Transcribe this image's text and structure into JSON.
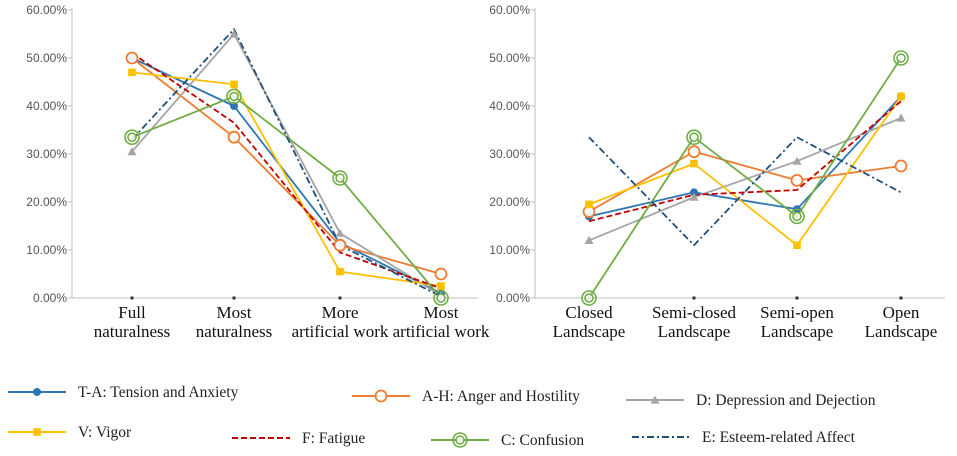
{
  "figure_title": "",
  "chart_data": [
    {
      "type": "line",
      "title": "",
      "xlabel": "",
      "ylabel": "",
      "ylim": [
        0,
        60
      ],
      "yticks": [
        0,
        10,
        20,
        30,
        40,
        50,
        60
      ],
      "ytick_labels": [
        "0.00%",
        "10.00%",
        "20.00%",
        "30.00%",
        "40.00%",
        "50.00%",
        "60.00%"
      ],
      "categories": [
        [
          "Full",
          "naturalness"
        ],
        [
          "Most",
          "naturalness"
        ],
        [
          "More",
          "artificial work"
        ],
        [
          "Most",
          "artificial work"
        ]
      ],
      "series": [
        {
          "key": "TA",
          "values": [
            50,
            40,
            11.5,
            1
          ]
        },
        {
          "key": "AH",
          "values": [
            50,
            33.5,
            11,
            5
          ]
        },
        {
          "key": "D",
          "values": [
            30.5,
            55,
            13.5,
            0.5
          ]
        },
        {
          "key": "V",
          "values": [
            47,
            44.5,
            5.5,
            2.5
          ]
        },
        {
          "key": "F",
          "values": [
            51,
            36.5,
            9.5,
            2
          ]
        },
        {
          "key": "C",
          "values": [
            33.5,
            42,
            25,
            0
          ]
        },
        {
          "key": "E",
          "values": [
            33,
            56,
            11,
            0.3
          ]
        }
      ]
    },
    {
      "type": "line",
      "title": "",
      "xlabel": "",
      "ylabel": "",
      "ylim": [
        0,
        60
      ],
      "yticks": [
        0,
        10,
        20,
        30,
        40,
        50,
        60
      ],
      "ytick_labels": [
        "0.00%",
        "10.00%",
        "20.00%",
        "30.00%",
        "40.00%",
        "50.00%",
        "60.00%"
      ],
      "categories": [
        [
          "Closed",
          "Landscape"
        ],
        [
          "Semi-closed",
          "Landscape"
        ],
        [
          "Semi-open",
          "Landscape"
        ],
        [
          "Open",
          "Landscape"
        ]
      ],
      "series": [
        {
          "key": "TA",
          "values": [
            17,
            22,
            18.5,
            42
          ]
        },
        {
          "key": "AH",
          "values": [
            18,
            30.5,
            24.5,
            27.5
          ]
        },
        {
          "key": "D",
          "values": [
            12,
            21,
            28.5,
            37.5
          ]
        },
        {
          "key": "V",
          "values": [
            19.5,
            28,
            11,
            42
          ]
        },
        {
          "key": "F",
          "values": [
            16,
            21.5,
            22.5,
            41
          ]
        },
        {
          "key": "C",
          "values": [
            0,
            33.5,
            17,
            50
          ]
        },
        {
          "key": "E",
          "values": [
            33.5,
            11,
            33.5,
            22
          ]
        }
      ]
    }
  ],
  "legend": [
    {
      "key": "TA",
      "label": "T-A: Tension and Anxiety",
      "color": "#2e75b6",
      "marker": "circle",
      "dash": "solid"
    },
    {
      "key": "AH",
      "label": "A-H: Anger and Hostility",
      "color": "#ed7d31",
      "marker": "ring",
      "dash": "solid"
    },
    {
      "key": "D",
      "label": "D: Depression and Dejection",
      "color": "#a5a5a5",
      "marker": "triangle",
      "dash": "solid"
    },
    {
      "key": "V",
      "label": "V: Vigor",
      "color": "#ffc000",
      "marker": "square",
      "dash": "solid"
    },
    {
      "key": "F",
      "label": "F: Fatigue",
      "color": "#c00000",
      "marker": "none",
      "dash": "dashed"
    },
    {
      "key": "C",
      "label": "C: Confusion",
      "color": "#70ad47",
      "marker": "double-ring",
      "dash": "solid"
    },
    {
      "key": "E",
      "label": "E: Esteem-related Affect",
      "color": "#1f4e79",
      "marker": "none",
      "dash": "dashdot"
    }
  ]
}
